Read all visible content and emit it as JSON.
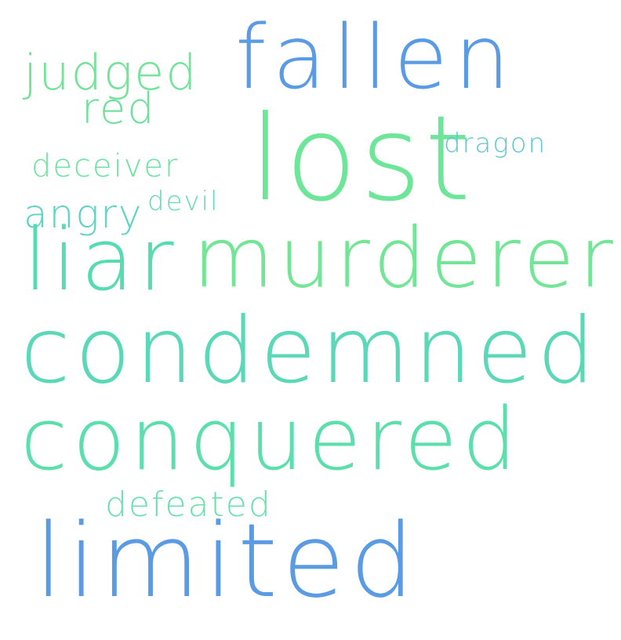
{
  "word_cloud": {
    "words": [
      {
        "text": "fallen",
        "color": "#5b9be3"
      },
      {
        "text": "lost",
        "color": "#6ee69a"
      },
      {
        "text": "judged",
        "color": "#73e39a"
      },
      {
        "text": "red",
        "color": "#6fe09b"
      },
      {
        "text": "dragon",
        "color": "#5fc6cf"
      },
      {
        "text": "deceiver",
        "color": "#6ee3a0"
      },
      {
        "text": "devil",
        "color": "#66d9b5"
      },
      {
        "text": "angry",
        "color": "#5fd3c1"
      },
      {
        "text": "liar",
        "color": "#56dbb3"
      },
      {
        "text": "murderer",
        "color": "#72e696"
      },
      {
        "text": "condemned",
        "color": "#5ad8b8"
      },
      {
        "text": "conquered",
        "color": "#5ddfad"
      },
      {
        "text": "defeated",
        "color": "#6bdfae"
      },
      {
        "text": "limited",
        "color": "#5b9be3"
      }
    ]
  }
}
